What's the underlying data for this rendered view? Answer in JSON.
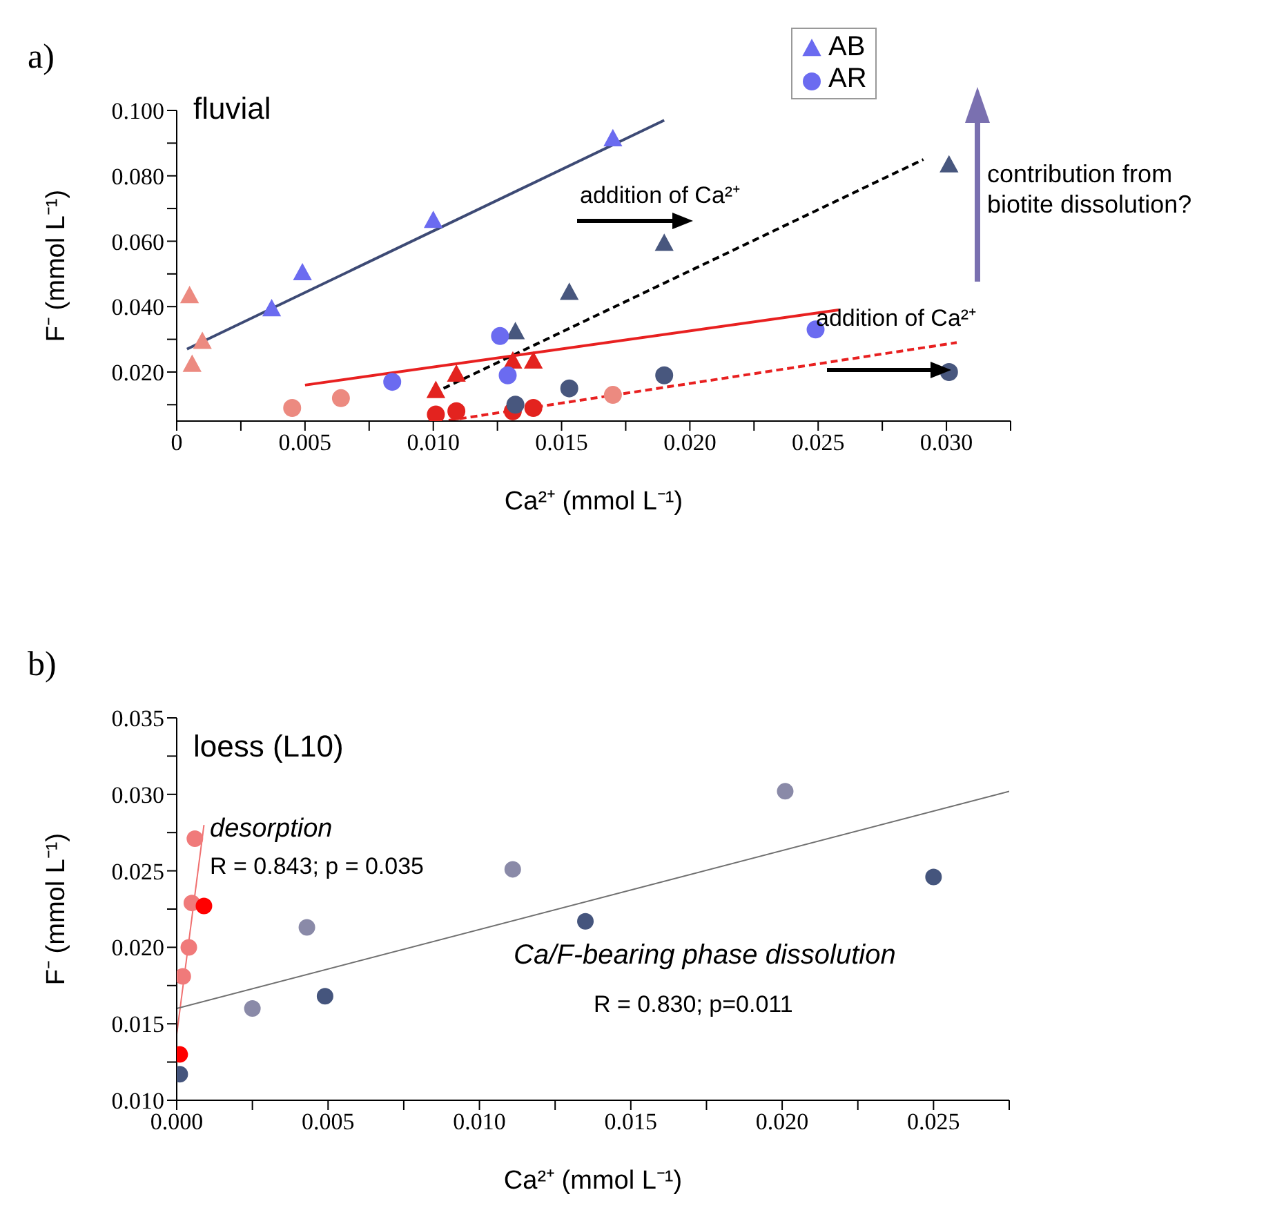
{
  "chart_data": [
    {
      "type": "scatter",
      "title": "a)",
      "xlabel": "Ca²⁺ (mmol L⁻¹)",
      "ylabel": "F⁻ (mmol L⁻¹)",
      "annotations": [
        "fluvial",
        "addition of Ca²⁺",
        "addition of Ca²⁺",
        "contribution from biotite dissolution?"
      ],
      "xlim": [
        0,
        0.0325
      ],
      "xticks": [
        {
          "value": 0,
          "label": "0"
        },
        {
          "value": 0.0025,
          "label": null
        },
        {
          "value": 0.005,
          "label": "0.005"
        },
        {
          "value": 0.0075,
          "label": null
        },
        {
          "value": 0.01,
          "label": "0.010"
        },
        {
          "value": 0.0125,
          "label": null
        },
        {
          "value": 0.015,
          "label": "0.015"
        },
        {
          "value": 0.0175,
          "label": null
        },
        {
          "value": 0.02,
          "label": "0.020"
        },
        {
          "value": 0.0225,
          "label": null
        },
        {
          "value": 0.025,
          "label": "0.025"
        },
        {
          "value": 0.0275,
          "label": null
        },
        {
          "value": 0.03,
          "label": "0.030"
        },
        {
          "value": 0.0325,
          "label": null
        }
      ],
      "ylim": [
        0.005,
        0.1
      ],
      "yticks": [
        {
          "value": 0.01,
          "label": null
        },
        {
          "value": 0.02,
          "label": "0.020"
        },
        {
          "value": 0.03,
          "label": null
        },
        {
          "value": 0.04,
          "label": "0.040"
        },
        {
          "value": 0.05,
          "label": null
        },
        {
          "value": 0.06,
          "label": "0.060"
        },
        {
          "value": 0.07,
          "label": null
        },
        {
          "value": 0.08,
          "label": "0.080"
        },
        {
          "value": 0.09,
          "label": null
        },
        {
          "value": 0.1,
          "label": "0.100"
        }
      ],
      "legend": "top right",
      "series": [
        {
          "type": "scatter",
          "name": "AB",
          "color": "#6b6bf0",
          "marker": "triangle",
          "x": [
            0.0037,
            0.0049,
            0.01,
            0.017
          ],
          "values": [
            0.039,
            0.05,
            0.066,
            0.091
          ]
        },
        {
          "type": "scatter",
          "color": "#ec8a80",
          "marker": "triangle",
          "x": [
            0.0005,
            0.001,
            0.0006
          ],
          "values": [
            0.043,
            0.029,
            0.022
          ]
        },
        {
          "type": "scatter",
          "color": "#48577e",
          "marker": "triangle",
          "x": [
            0.0132,
            0.0153,
            0.019,
            0.0301
          ],
          "values": [
            0.032,
            0.044,
            0.059,
            0.083
          ]
        },
        {
          "type": "scatter",
          "color": "#e3231f",
          "marker": "triangle",
          "x": [
            0.0101,
            0.0109,
            0.0131,
            0.0139
          ],
          "values": [
            0.014,
            0.019,
            0.023,
            0.023
          ]
        },
        {
          "type": "scatter",
          "name": "AR",
          "color": "#6b6bf0",
          "marker": "circle",
          "x": [
            0.0084,
            0.0126,
            0.0129,
            0.0249
          ],
          "values": [
            0.017,
            0.031,
            0.019,
            0.033
          ]
        },
        {
          "type": "scatter",
          "color": "#ec8a80",
          "marker": "circle",
          "x": [
            0.0045,
            0.0064,
            0.017
          ],
          "values": [
            0.009,
            0.012,
            0.013
          ]
        },
        {
          "type": "scatter",
          "color": "#e3231f",
          "marker": "circle",
          "x": [
            0.0101,
            0.0109,
            0.0131,
            0.0139
          ],
          "values": [
            0.007,
            0.008,
            0.008,
            0.009
          ]
        },
        {
          "type": "scatter",
          "color": "#48577e",
          "marker": "circle",
          "x": [
            0.0132,
            0.0153,
            0.019,
            0.0301
          ],
          "values": [
            0.01,
            0.015,
            0.019,
            0.02
          ]
        },
        {
          "type": "line",
          "color": "#3d4a75",
          "line_style": "solid",
          "x": [
            0.0004,
            0.019
          ],
          "values": [
            0.027,
            0.097
          ]
        },
        {
          "type": "line",
          "color": "#000000",
          "line_style": "dashed",
          "x": [
            0.0104,
            0.0291
          ],
          "values": [
            0.015,
            0.085
          ]
        },
        {
          "type": "line",
          "color": "#e82020",
          "line_style": "solid",
          "x": [
            0.005,
            0.0258
          ],
          "values": [
            0.016,
            0.039
          ]
        },
        {
          "type": "line",
          "color": "#e82020",
          "line_style": "dashed",
          "x": [
            0.0106,
            0.0304
          ],
          "values": [
            0.0052,
            0.029
          ]
        }
      ]
    },
    {
      "type": "scatter",
      "title": "b)",
      "xlabel": "Ca²⁺ (mmol L⁻¹)",
      "ylabel": "F⁻ (mmol L⁻¹)",
      "annotations": [
        "loess (L10)",
        "desorption",
        "R = 0.843; p = 0.035",
        "Ca/F-bearing phase dissolution",
        "R = 0.830; p=0.011"
      ],
      "xlim": [
        0,
        0.0275
      ],
      "xticks": [
        {
          "value": 0,
          "label": "0.000"
        },
        {
          "value": 0.0025,
          "label": null
        },
        {
          "value": 0.005,
          "label": "0.005"
        },
        {
          "value": 0.0075,
          "label": null
        },
        {
          "value": 0.01,
          "label": "0.010"
        },
        {
          "value": 0.0125,
          "label": null
        },
        {
          "value": 0.015,
          "label": "0.015"
        },
        {
          "value": 0.0175,
          "label": null
        },
        {
          "value": 0.02,
          "label": "0.020"
        },
        {
          "value": 0.0225,
          "label": null
        },
        {
          "value": 0.025,
          "label": "0.025"
        },
        {
          "value": 0.0275,
          "label": null
        }
      ],
      "ylim": [
        0.01,
        0.035
      ],
      "yticks": [
        {
          "value": 0.01,
          "label": "0.010"
        },
        {
          "value": 0.0125,
          "label": null
        },
        {
          "value": 0.015,
          "label": "0.015"
        },
        {
          "value": 0.0175,
          "label": null
        },
        {
          "value": 0.02,
          "label": "0.020"
        },
        {
          "value": 0.0225,
          "label": null
        },
        {
          "value": 0.025,
          "label": "0.025"
        },
        {
          "value": 0.0275,
          "label": null
        },
        {
          "value": 0.03,
          "label": "0.030"
        },
        {
          "value": 0.0325,
          "label": null
        },
        {
          "value": 0.035,
          "label": "0.035"
        }
      ],
      "series": [
        {
          "type": "scatter",
          "color": "#f07a7a",
          "marker": "circle",
          "x": [
            0.0002,
            0.0004,
            0.0005,
            0.0006
          ],
          "values": [
            0.0181,
            0.02,
            0.0229,
            0.0271
          ]
        },
        {
          "type": "scatter",
          "color": "#ff0000",
          "marker": "circle",
          "x": [
            0.0001,
            0.0009
          ],
          "values": [
            0.013,
            0.0227
          ]
        },
        {
          "type": "scatter",
          "color": "#8a8aa8",
          "marker": "circle",
          "x": [
            0.0025,
            0.0043,
            0.0111,
            0.0201
          ],
          "values": [
            0.016,
            0.0213,
            0.0251,
            0.0302
          ]
        },
        {
          "type": "scatter",
          "color": "#45557d",
          "marker": "circle",
          "x": [
            0.0001,
            0.0049,
            0.0135,
            0.025
          ],
          "values": [
            0.0117,
            0.0168,
            0.0217,
            0.0246
          ]
        },
        {
          "type": "line",
          "color": "#f07070",
          "line_style": "solid",
          "x": [
            0,
            0.0009
          ],
          "values": [
            0.0143,
            0.028
          ]
        },
        {
          "type": "line",
          "color": "#707070",
          "line_style": "solid",
          "x": [
            0,
            0.0275
          ],
          "values": [
            0.016,
            0.0302
          ]
        }
      ]
    }
  ]
}
